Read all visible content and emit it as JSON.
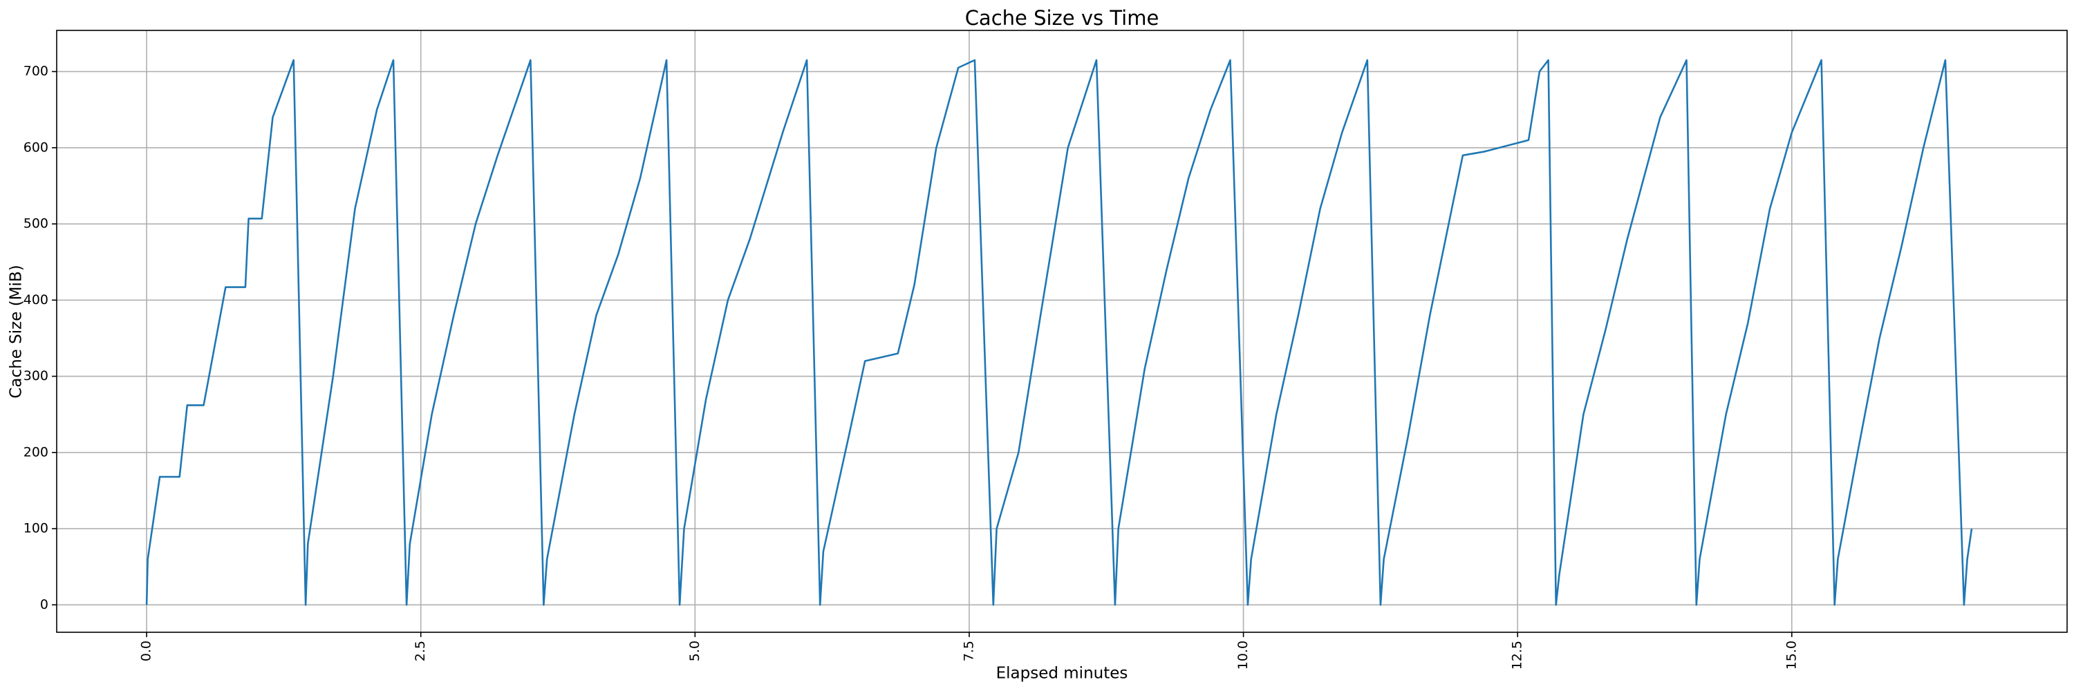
{
  "chart_data": {
    "type": "line",
    "title": "Cache Size vs Time",
    "xlabel": "Elapsed minutes",
    "ylabel": "Cache Size (MiB)",
    "color": "#1f77b4",
    "grid": true,
    "xlim": [
      -0.82,
      17.51
    ],
    "ylim": [
      -36,
      754
    ],
    "xticks": [
      {
        "value": 0,
        "label": "0.0"
      },
      2.5,
      {
        "value": 5,
        "label": "5.0"
      },
      7.5,
      {
        "value": 10,
        "label": "10.0"
      },
      12.5,
      {
        "value": 15,
        "label": "15.0"
      }
    ],
    "yticks": [
      0,
      100,
      200,
      300,
      400,
      500,
      600,
      700
    ],
    "x": [
      0,
      0.01,
      0.12,
      0.3,
      0.37,
      0.52,
      0.72,
      0.9,
      0.93,
      1.05,
      1.15,
      1.34,
      1.45,
      1.47,
      1.7,
      1.9,
      2.1,
      2.25,
      2.37,
      2.4,
      2.6,
      2.8,
      3.0,
      3.2,
      3.5,
      3.62,
      3.65,
      3.9,
      4.1,
      4.3,
      4.5,
      4.74,
      4.86,
      4.9,
      5.1,
      5.3,
      5.5,
      5.8,
      6.02,
      6.14,
      6.17,
      6.4,
      6.55,
      6.85,
      7.0,
      7.2,
      7.4,
      7.55,
      7.72,
      7.75,
      7.95,
      8.15,
      8.4,
      8.66,
      8.83,
      8.86,
      9.1,
      9.3,
      9.5,
      9.7,
      9.88,
      10.04,
      10.07,
      10.3,
      10.5,
      10.7,
      10.9,
      11.13,
      11.25,
      11.28,
      11.5,
      11.7,
      11.9,
      12.0,
      12.2,
      12.6,
      12.7,
      12.78,
      12.85,
      12.88,
      13.1,
      13.3,
      13.5,
      13.8,
      14.04,
      14.13,
      14.16,
      14.4,
      14.6,
      14.8,
      15.0,
      15.27,
      15.39,
      15.42,
      15.6,
      15.8,
      16.0,
      16.2,
      16.4,
      16.57,
      16.6,
      16.64
    ],
    "values": [
      0,
      60,
      168,
      168,
      262,
      262,
      417,
      417,
      507,
      507,
      640,
      715,
      0,
      80,
      300,
      520,
      650,
      715,
      0,
      80,
      250,
      380,
      500,
      590,
      715,
      0,
      60,
      250,
      380,
      460,
      560,
      715,
      0,
      100,
      270,
      400,
      480,
      620,
      715,
      0,
      70,
      220,
      320,
      330,
      420,
      600,
      705,
      715,
      0,
      100,
      200,
      380,
      600,
      715,
      0,
      100,
      310,
      440,
      560,
      650,
      715,
      0,
      60,
      250,
      380,
      520,
      620,
      715,
      0,
      60,
      220,
      380,
      520,
      590,
      595,
      610,
      700,
      715,
      0,
      40,
      250,
      360,
      480,
      640,
      715,
      0,
      60,
      250,
      370,
      520,
      620,
      715,
      0,
      60,
      200,
      350,
      470,
      600,
      715,
      0,
      60,
      100
    ]
  }
}
